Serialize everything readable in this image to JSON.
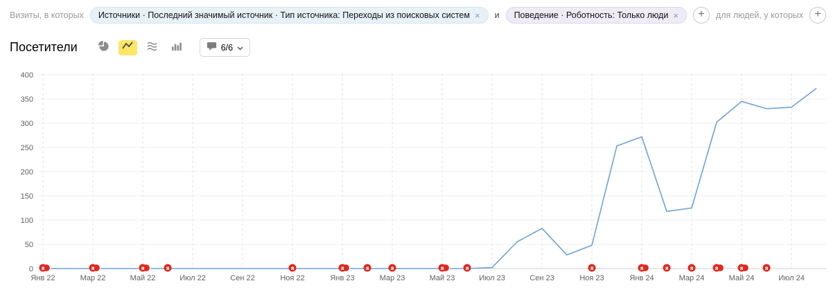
{
  "filter_bar": {
    "prefix_label": "Визиты, в которых",
    "conjunction": "и",
    "suffix_label": "для людей, у которых",
    "chips": [
      {
        "label": "Источники · Последний значимый источник · Тип источника: Переходы из поисковых систем"
      },
      {
        "label": "Поведение · Роботность: Только люди"
      }
    ]
  },
  "icons": {
    "close": "×",
    "plus": "+"
  },
  "header": {
    "title": "Посетители",
    "comments_counter": "6/6"
  },
  "chart_data": {
    "type": "line",
    "title": "Посетители",
    "xlabel": "",
    "ylabel": "",
    "ylim": [
      0,
      400
    ],
    "y_ticks": [
      0,
      50,
      100,
      150,
      200,
      250,
      300,
      350,
      400
    ],
    "grid": true,
    "legend": "none",
    "line_color": "#6ba2d9",
    "marker_color": "#e0281e",
    "x": [
      "Янв 22",
      "Фев 22",
      "Мар 22",
      "Апр 22",
      "Май 22",
      "Июн 22",
      "Июл 22",
      "Авг 22",
      "Сен 22",
      "Окт 22",
      "Ноя 22",
      "Дек 22",
      "Янв 23",
      "Фев 23",
      "Мар 23",
      "Апр 23",
      "Май 23",
      "Июн 23",
      "Июл 23",
      "Авг 23",
      "Сен 23",
      "Окт 23",
      "Ноя 23",
      "Дек 23",
      "Янв 24",
      "Фев 24",
      "Мар 24",
      "Апр 24",
      "Май 24",
      "Июн 24",
      "Июл 24",
      "Авг 24"
    ],
    "values": [
      0,
      0,
      0,
      0,
      0,
      0,
      0,
      0,
      0,
      0,
      0,
      0,
      0,
      0,
      0,
      0,
      0,
      0,
      2,
      55,
      83,
      28,
      48,
      253,
      272,
      118,
      125,
      302,
      345,
      330,
      333,
      372
    ],
    "x_tick_labels": [
      "Янв 22",
      "Мар 22",
      "Май 22",
      "Июл 22",
      "Сен 22",
      "Ноя 22",
      "Янв 23",
      "Мар 23",
      "Май 23",
      "Июл 23",
      "Сен 23",
      "Ноя 23",
      "Янв 24",
      "Мар 24",
      "Май 24",
      "Июл 24"
    ],
    "annotations": [
      {
        "index": 0,
        "month": "Янв 22",
        "count": 2
      },
      {
        "index": 2,
        "month": "Мар 22",
        "count": 2
      },
      {
        "index": 4,
        "month": "Май 22",
        "count": 2
      },
      {
        "index": 5,
        "month": "Июн 22",
        "count": 1
      },
      {
        "index": 10,
        "month": "Ноя 22",
        "count": 1
      },
      {
        "index": 12,
        "month": "Янв 23",
        "count": 2
      },
      {
        "index": 13,
        "month": "Фев 23",
        "count": 1
      },
      {
        "index": 14,
        "month": "Мар 23",
        "count": 1
      },
      {
        "index": 16,
        "month": "Май 23",
        "count": 2
      },
      {
        "index": 17,
        "month": "Июн 23",
        "count": 1
      },
      {
        "index": 22,
        "month": "Ноя 23",
        "count": 1
      },
      {
        "index": 24,
        "month": "Янв 24",
        "count": 2
      },
      {
        "index": 25,
        "month": "Фев 24",
        "count": 1
      },
      {
        "index": 26,
        "month": "Мар 24",
        "count": 1
      },
      {
        "index": 27,
        "month": "Апр 24",
        "count": 2
      },
      {
        "index": 28,
        "month": "Май 24",
        "count": 2
      },
      {
        "index": 29,
        "month": "Июн 24",
        "count": 1
      }
    ]
  }
}
